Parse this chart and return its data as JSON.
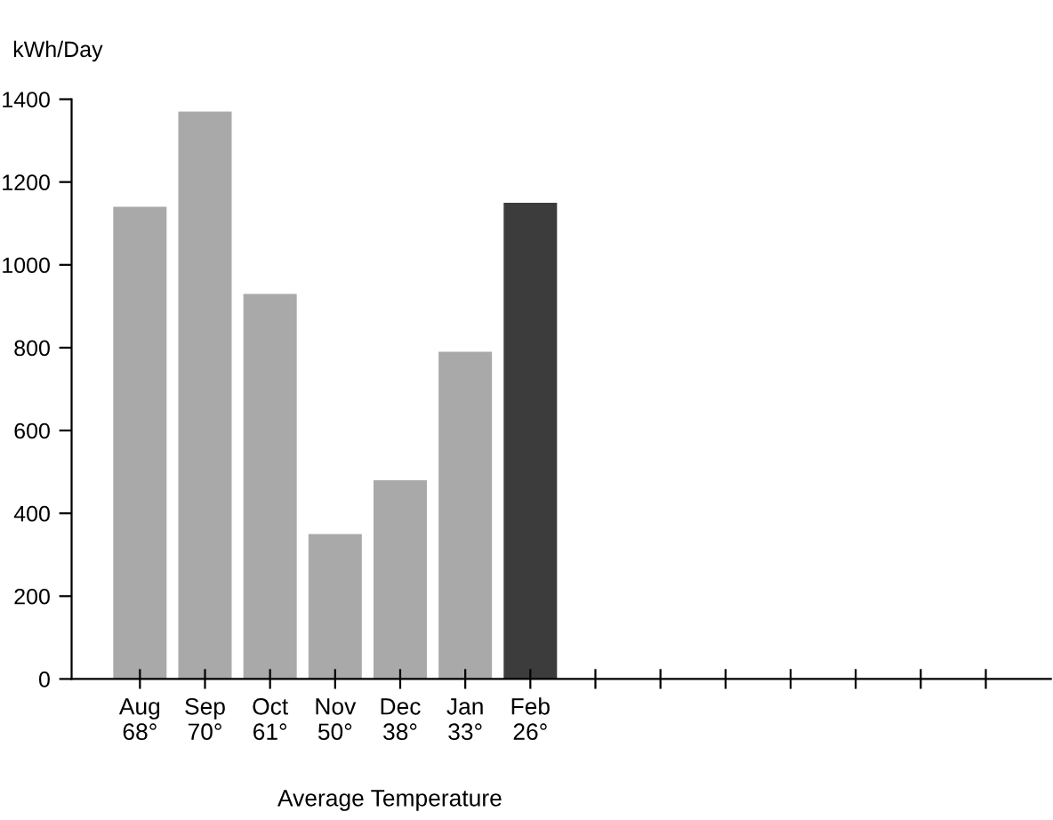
{
  "chart_data": {
    "type": "bar",
    "ylabel": "kWh/Day",
    "xlabel": "Average Temperature",
    "categories": [
      "Aug\n68°",
      "Sep\n70°",
      "Oct\n61°",
      "Nov\n50°",
      "Dec\n38°",
      "Jan\n33°",
      "Feb\n26°",
      null,
      null,
      null,
      null,
      null,
      null,
      null
    ],
    "values": [
      1140,
      1370,
      930,
      350,
      480,
      790,
      1150,
      null,
      null,
      null,
      null,
      null,
      null,
      null
    ],
    "colors": [
      "#a9a9a9",
      "#a9a9a9",
      "#a9a9a9",
      "#a9a9a9",
      "#a9a9a9",
      "#a9a9a9",
      "#3c3c3c",
      null,
      null,
      null,
      null,
      null,
      null,
      null
    ],
    "ylim": [
      0,
      1400
    ],
    "yticks": [
      0,
      200,
      400,
      600,
      800,
      1000,
      1200,
      1400
    ],
    "grid": false
  }
}
